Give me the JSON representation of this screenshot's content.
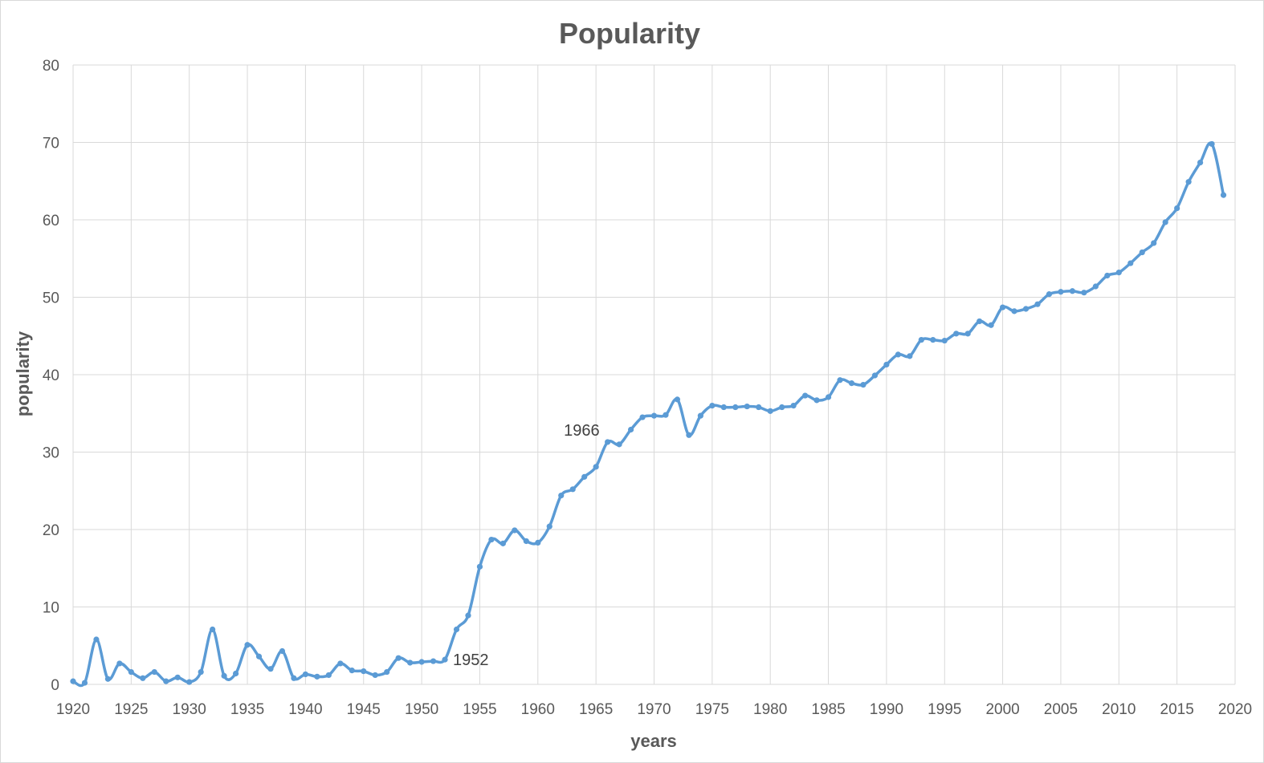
{
  "chart_data": {
    "type": "line",
    "title": "Popularity",
    "xlabel": "years",
    "ylabel": "popularity",
    "xlim": [
      1920,
      2020
    ],
    "ylim": [
      0,
      80
    ],
    "xticks": [
      1920,
      1925,
      1930,
      1935,
      1940,
      1945,
      1950,
      1955,
      1960,
      1965,
      1970,
      1975,
      1980,
      1985,
      1990,
      1995,
      2000,
      2005,
      2010,
      2015,
      2020
    ],
    "yticks": [
      0,
      10,
      20,
      30,
      40,
      50,
      60,
      70,
      80
    ],
    "grid": true,
    "smooth": true,
    "color": "#5b9bd5",
    "series": [
      {
        "x": [
          1920,
          1921,
          1922,
          1923,
          1924,
          1925,
          1926,
          1927,
          1928,
          1929,
          1930,
          1931,
          1932,
          1933,
          1934,
          1935,
          1936,
          1937,
          1938,
          1939,
          1940,
          1941,
          1942,
          1943,
          1944,
          1945,
          1946,
          1947,
          1948,
          1949,
          1950,
          1951,
          1952,
          1953,
          1954,
          1955,
          1956,
          1957,
          1958,
          1959,
          1960,
          1961,
          1962,
          1963,
          1964,
          1965,
          1966,
          1967,
          1968,
          1969,
          1970,
          1971,
          1972,
          1973,
          1974,
          1975,
          1976,
          1977,
          1978,
          1979,
          1980,
          1981,
          1982,
          1983,
          1984,
          1985,
          1986,
          1987,
          1988,
          1989,
          1990,
          1991,
          1992,
          1993,
          1994,
          1995,
          1996,
          1997,
          1998,
          1999,
          2000,
          2001,
          2002,
          2003,
          2004,
          2005,
          2006,
          2007,
          2008,
          2009,
          2010,
          2011,
          2012,
          2013,
          2014,
          2015,
          2016,
          2017,
          2018,
          2019
        ],
        "y": [
          0.4,
          0.2,
          5.8,
          0.7,
          2.7,
          1.6,
          0.8,
          1.6,
          0.4,
          0.9,
          0.3,
          1.6,
          7.1,
          1.1,
          1.4,
          5.1,
          3.6,
          2.0,
          4.3,
          0.8,
          1.3,
          1.0,
          1.2,
          2.7,
          1.8,
          1.7,
          1.2,
          1.6,
          3.4,
          2.8,
          2.9,
          3.0,
          3.2,
          7.1,
          8.9,
          15.2,
          18.7,
          18.2,
          19.9,
          18.5,
          18.3,
          20.4,
          24.4,
          25.2,
          26.8,
          28.1,
          31.3,
          31.0,
          32.9,
          34.5,
          34.7,
          34.8,
          36.8,
          32.2,
          34.7,
          36.0,
          35.8,
          35.8,
          35.9,
          35.8,
          35.3,
          35.8,
          36.0,
          37.3,
          36.7,
          37.1,
          39.3,
          38.9,
          38.7,
          39.9,
          41.3,
          42.6,
          42.4,
          44.5,
          44.5,
          44.4,
          45.3,
          45.3,
          46.9,
          46.4,
          48.7,
          48.2,
          48.5,
          49.1,
          50.4,
          50.7,
          50.8,
          50.6,
          51.4,
          52.8,
          53.2,
          54.4,
          55.8,
          57.0,
          59.7,
          61.5,
          64.9,
          67.4,
          69.8,
          63.2
        ]
      }
    ],
    "annotations": [
      {
        "text": "1952",
        "x": 1952,
        "y": 3.2
      },
      {
        "text": "1966",
        "x": 1966,
        "y": 31.3
      }
    ]
  }
}
